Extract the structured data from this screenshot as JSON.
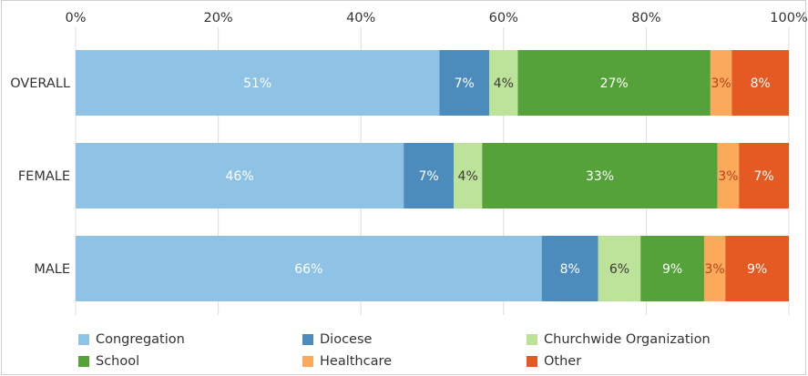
{
  "chart_data": {
    "type": "bar",
    "orientation": "horizontal",
    "stacked": true,
    "x_tick_labels": [
      "0%",
      "20%",
      "40%",
      "60%",
      "80%",
      "100%"
    ],
    "xlim": [
      0,
      100
    ],
    "grid": true,
    "legend_position": "bottom",
    "categories": [
      "OVERALL",
      "FEMALE",
      "MALE"
    ],
    "series": [
      {
        "name": "Congregation",
        "color": "#8fc3e6",
        "label_color": "#ffffff",
        "values": [
          51,
          46,
          66
        ],
        "labels": [
          "51%",
          "46%",
          "66%"
        ]
      },
      {
        "name": "Diocese",
        "color": "#4c8cbd",
        "label_color": "#ffffff",
        "values": [
          7,
          7,
          8
        ],
        "labels": [
          "7%",
          "7%",
          "8%"
        ]
      },
      {
        "name": "Churchwide Organization",
        "color": "#bde39a",
        "label_color": "#3a3a3a",
        "values": [
          4,
          4,
          6
        ],
        "labels": [
          "4%",
          "4%",
          "6%"
        ]
      },
      {
        "name": "School",
        "color": "#55a13a",
        "label_color": "#ffffff",
        "values": [
          27,
          33,
          9
        ],
        "labels": [
          "27%",
          "33%",
          "9%"
        ]
      },
      {
        "name": "Healthcare",
        "color": "#fba95a",
        "label_color": "#b5431c",
        "values": [
          3,
          3,
          3
        ],
        "labels": [
          "3%",
          "3%",
          "3%"
        ]
      },
      {
        "name": "Other",
        "color": "#e45a22",
        "label_color": "#ffffff",
        "values": [
          8,
          7,
          9
        ],
        "labels": [
          "8%",
          "7%",
          "9%"
        ]
      }
    ]
  }
}
